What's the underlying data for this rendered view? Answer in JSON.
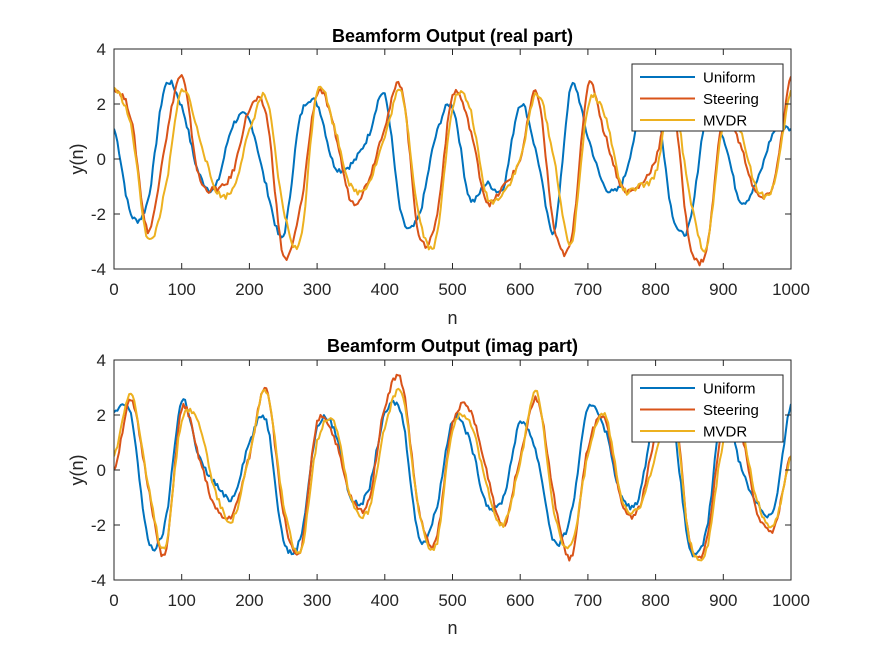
{
  "chart_data": [
    {
      "type": "line",
      "title": "Beamform Output (real part)",
      "xlabel": "n",
      "ylabel": "y(n)",
      "xlim": [
        0,
        1000
      ],
      "ylim": [
        -4,
        4
      ],
      "xticks": [
        0,
        100,
        200,
        300,
        400,
        500,
        600,
        700,
        800,
        900,
        1000
      ],
      "yticks": [
        -4,
        -2,
        0,
        2,
        4
      ],
      "grid": false,
      "legend_position": "top-right",
      "x": [
        0,
        25,
        50,
        75,
        100,
        125,
        150,
        175,
        200,
        225,
        250,
        275,
        300,
        325,
        350,
        375,
        400,
        425,
        450,
        475,
        500,
        525,
        550,
        575,
        600,
        625,
        650,
        675,
        700,
        725,
        750,
        775,
        800,
        825,
        850,
        875,
        900,
        925,
        950,
        975,
        1000
      ],
      "series": [
        {
          "name": "Uniform",
          "color": "#0072BD",
          "values": [
            1.1,
            -2.0,
            -1.5,
            2.6,
            1.9,
            -0.5,
            -1.0,
            1.2,
            1.4,
            -1.0,
            -2.8,
            1.5,
            2.0,
            -0.2,
            -0.2,
            0.8,
            2.3,
            -2.1,
            -2.1,
            0.8,
            1.9,
            -1.4,
            -0.9,
            -1.0,
            2.0,
            0.1,
            -2.6,
            2.6,
            0.8,
            -1.0,
            -0.9,
            1.3,
            2.2,
            -2.0,
            -2.4,
            1.6,
            0.8,
            -1.5,
            -0.8,
            1.0,
            1.1
          ]
        },
        {
          "name": "Steering",
          "color": "#D95319",
          "values": [
            2.6,
            1.5,
            -2.6,
            0.5,
            3.0,
            -0.6,
            -1.1,
            -0.5,
            1.8,
            1.6,
            -3.5,
            -1.8,
            2.4,
            1.1,
            -1.5,
            -0.8,
            1.2,
            2.6,
            -2.7,
            -2.3,
            2.3,
            1.2,
            -1.5,
            -1.0,
            0.0,
            2.4,
            -2.5,
            -3.0,
            2.6,
            0.9,
            -1.0,
            -1.0,
            0.0,
            2.0,
            -3.0,
            -3.3,
            1.6,
            0.5,
            -1.3,
            -0.8,
            3.0
          ]
        },
        {
          "name": "MVDR",
          "color": "#EDB120",
          "values": [
            2.6,
            1.2,
            -2.9,
            -1.2,
            2.5,
            0.9,
            -1.1,
            -1.1,
            1.0,
            2.2,
            -1.8,
            -3.0,
            2.5,
            1.2,
            -1.0,
            -0.9,
            0.8,
            2.4,
            -2.0,
            -3.0,
            1.9,
            1.9,
            -1.3,
            -1.2,
            0.0,
            2.4,
            0.0,
            -3.1,
            1.9,
            1.6,
            -1.0,
            -1.0,
            -0.5,
            2.3,
            -1.3,
            -3.2,
            1.3,
            1.0,
            -1.1,
            -0.9,
            2.5
          ]
        }
      ]
    },
    {
      "type": "line",
      "title": "Beamform Output (imag part)",
      "xlabel": "n",
      "ylabel": "y(n)",
      "xlim": [
        0,
        1000
      ],
      "ylim": [
        -4,
        4
      ],
      "xticks": [
        0,
        100,
        200,
        300,
        400,
        500,
        600,
        700,
        800,
        900,
        1000
      ],
      "yticks": [
        -4,
        -2,
        0,
        2,
        4
      ],
      "grid": false,
      "legend_position": "top-right",
      "x": [
        0,
        25,
        50,
        75,
        100,
        125,
        150,
        175,
        200,
        225,
        250,
        275,
        300,
        325,
        350,
        375,
        400,
        425,
        450,
        475,
        500,
        525,
        550,
        575,
        600,
        625,
        650,
        675,
        700,
        725,
        750,
        775,
        800,
        825,
        850,
        875,
        900,
        925,
        950,
        975,
        1000
      ],
      "series": [
        {
          "name": "Uniform",
          "color": "#0072BD",
          "values": [
            2.1,
            2.0,
            -2.5,
            -2.0,
            2.5,
            0.5,
            -0.5,
            -1.0,
            1.0,
            1.8,
            -2.5,
            -2.5,
            1.5,
            1.5,
            -1.0,
            -0.8,
            2.0,
            2.0,
            -2.4,
            -1.5,
            1.8,
            1.1,
            -1.2,
            -1.0,
            1.7,
            0.5,
            -2.6,
            -1.6,
            2.2,
            1.5,
            -1.0,
            -1.0,
            2.2,
            1.8,
            -2.8,
            -2.2,
            2.5,
            0.2,
            -1.2,
            -1.4,
            2.4
          ]
        },
        {
          "name": "Steering",
          "color": "#D95319",
          "values": [
            0.0,
            2.5,
            -0.5,
            -3.1,
            2.2,
            0.5,
            -1.4,
            -1.6,
            0.5,
            3.0,
            -1.5,
            -3.0,
            1.7,
            1.2,
            -1.0,
            -1.2,
            2.3,
            3.2,
            -1.4,
            -2.6,
            1.7,
            2.2,
            0.0,
            -2.0,
            0.5,
            2.6,
            -1.0,
            -3.2,
            0.8,
            1.8,
            -1.2,
            -1.4,
            1.3,
            3.0,
            -2.6,
            -2.6,
            1.8,
            1.5,
            -1.5,
            -2.1,
            0.5
          ]
        },
        {
          "name": "MVDR",
          "color": "#EDB120",
          "values": [
            0.5,
            2.8,
            -0.5,
            -2.8,
            1.8,
            1.7,
            -0.8,
            -1.8,
            0.5,
            2.9,
            -1.2,
            -3.0,
            1.0,
            1.8,
            -1.0,
            -1.5,
            1.5,
            2.8,
            -1.4,
            -2.8,
            1.5,
            1.8,
            -0.5,
            -2.0,
            0.3,
            2.8,
            -1.5,
            -2.8,
            0.5,
            2.0,
            -1.0,
            -1.4,
            0.5,
            2.5,
            -2.5,
            -2.9,
            1.0,
            1.5,
            -1.1,
            -2.0,
            0.5
          ]
        }
      ]
    }
  ]
}
